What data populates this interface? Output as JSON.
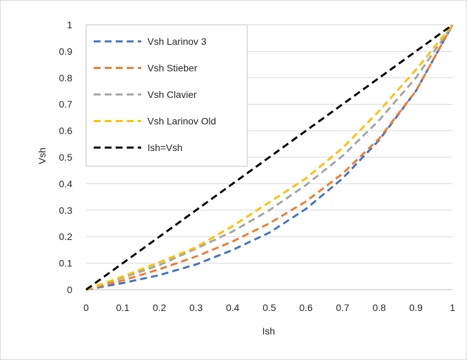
{
  "chart_data": {
    "type": "line",
    "title": "",
    "xlabel": "Ish",
    "ylabel": "Vsh",
    "xlim": [
      0,
      1
    ],
    "ylim": [
      0,
      1
    ],
    "xticks": [
      "0",
      "0.1",
      "0.2",
      "0.3",
      "0.4",
      "0.5",
      "0.6",
      "0.7",
      "0.8",
      "0.9",
      "1"
    ],
    "yticks": [
      "0",
      "0.1",
      "0.2",
      "0.3",
      "0.4",
      "0.5",
      "0.6",
      "0.7",
      "0.8",
      "0.9",
      "1"
    ],
    "grid": "horizontal",
    "legend_position": "top-left",
    "x": [
      0,
      0.1,
      0.2,
      0.3,
      0.4,
      0.5,
      0.6,
      0.7,
      0.8,
      0.9,
      1
    ],
    "series": [
      {
        "name": "Vsh Larinov 3",
        "color": "#4472C4",
        "values": [
          0,
          0.025,
          0.055,
          0.095,
          0.15,
          0.215,
          0.305,
          0.42,
          0.565,
          0.75,
          1
        ]
      },
      {
        "name": "Vsh Stieber",
        "color": "#ED7D31",
        "values": [
          0,
          0.035,
          0.077,
          0.125,
          0.182,
          0.25,
          0.333,
          0.438,
          0.571,
          0.75,
          1
        ]
      },
      {
        "name": "Vsh Clavier",
        "color": "#A5A5A5",
        "values": [
          0,
          0.045,
          0.093,
          0.155,
          0.22,
          0.3,
          0.395,
          0.505,
          0.64,
          0.8,
          1
        ]
      },
      {
        "name": "Vsh Larinov Old",
        "color": "#FFC000",
        "values": [
          0,
          0.05,
          0.103,
          0.16,
          0.24,
          0.33,
          0.42,
          0.535,
          0.675,
          0.83,
          1
        ]
      },
      {
        "name": "Ish=Vsh",
        "color": "#000000",
        "values": [
          0,
          0.1,
          0.2,
          0.3,
          0.4,
          0.5,
          0.6,
          0.7,
          0.8,
          0.9,
          1
        ]
      }
    ]
  }
}
